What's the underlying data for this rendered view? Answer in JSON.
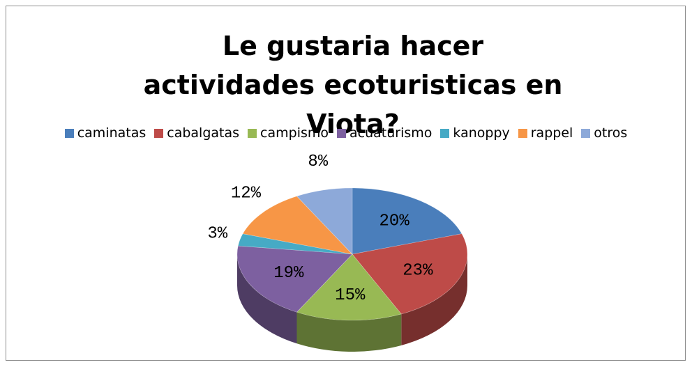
{
  "chart_data": {
    "type": "pie3d",
    "title": "Le gustaria hacer actividades ecoturisticas en Viota?",
    "categories": [
      "caminatas",
      "cabalgatas",
      "campismo",
      "acuaturismo",
      "kanoppy",
      "rappel",
      "otros"
    ],
    "values": [
      20,
      23,
      15,
      19,
      3,
      12,
      8
    ],
    "value_labels": [
      "20%",
      "23%",
      "15%",
      "19%",
      "3%",
      "12%",
      "8%"
    ],
    "colors": [
      "#4a7ebb",
      "#be4b48",
      "#98b954",
      "#7d60a0",
      "#46aac5",
      "#f79646",
      "#8da9d9"
    ],
    "legend": "top"
  }
}
